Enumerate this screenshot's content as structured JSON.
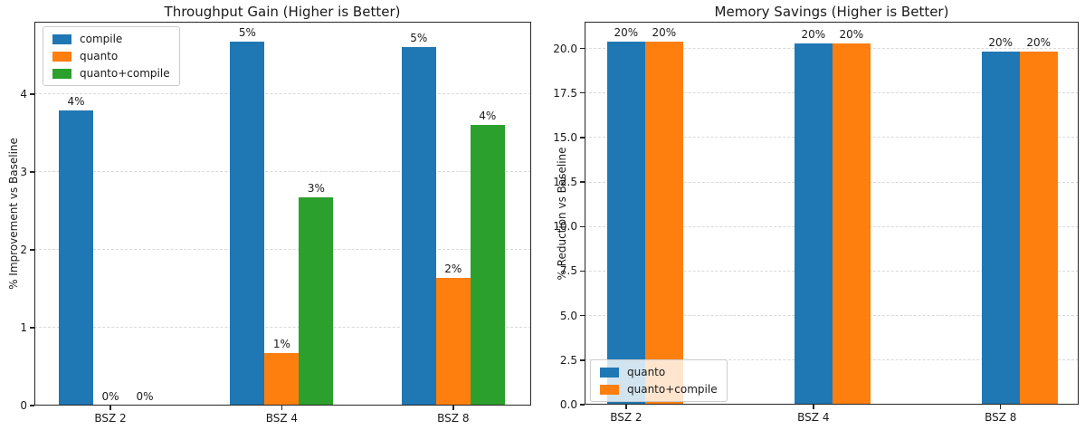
{
  "chart_data": [
    {
      "type": "bar",
      "title": "Throughput Gain (Higher is Better)",
      "ylabel": "% Improvement vs Baseline",
      "xlabel": "",
      "categories": [
        "BSZ 2",
        "BSZ 4",
        "BSZ 8"
      ],
      "series": [
        {
          "name": "compile",
          "color": "#1f77b4",
          "values": [
            3.79,
            4.68,
            4.6
          ],
          "bar_labels": [
            "4%",
            "5%",
            "5%"
          ]
        },
        {
          "name": "quanto",
          "color": "#ff7f0e",
          "values": [
            0,
            0.67,
            1.64
          ],
          "bar_labels": [
            "0%",
            "1%",
            "2%"
          ]
        },
        {
          "name": "quanto+compile",
          "color": "#2ca02c",
          "values": [
            0,
            2.68,
            3.61
          ],
          "bar_labels": [
            "0%",
            "3%",
            "4%"
          ]
        }
      ],
      "yticks": [
        0,
        1,
        2,
        3,
        4
      ],
      "ytick_labels": [
        "0",
        "1",
        "2",
        "3",
        "4"
      ],
      "ylim": [
        0,
        4.93
      ],
      "grid": "horizontal-dashed",
      "legend": {
        "position": "upper-left",
        "entries": [
          "compile",
          "quanto",
          "quanto+compile"
        ]
      }
    },
    {
      "type": "bar",
      "title": "Memory Savings (Higher is Better)",
      "ylabel": "% Reduction vs Baseline",
      "xlabel": "",
      "categories": [
        "BSZ 2",
        "BSZ 4",
        "BSZ 8"
      ],
      "series": [
        {
          "name": "quanto",
          "color": "#1f77b4",
          "values": [
            20.4,
            20.3,
            19.8
          ],
          "bar_labels": [
            "20%",
            "20%",
            "20%"
          ]
        },
        {
          "name": "quanto+compile",
          "color": "#ff7f0e",
          "values": [
            20.4,
            20.3,
            19.8
          ],
          "bar_labels": [
            "20%",
            "20%",
            "20%"
          ]
        }
      ],
      "yticks": [
        0,
        2.5,
        5,
        7.5,
        10,
        12.5,
        15,
        17.5,
        20
      ],
      "ytick_labels": [
        "0.0",
        "2.5",
        "5.0",
        "7.5",
        "10.0",
        "12.5",
        "15.0",
        "17.5",
        "20.0"
      ],
      "ylim": [
        0,
        21.5
      ],
      "grid": "horizontal-dashed",
      "legend": {
        "position": "lower-left",
        "entries": [
          "quanto",
          "quanto+compile"
        ]
      }
    }
  ],
  "colors": {
    "grid": "#d9d9d9",
    "spine": "#262626",
    "text": "#1a1a1a",
    "background": "#ffffff"
  }
}
